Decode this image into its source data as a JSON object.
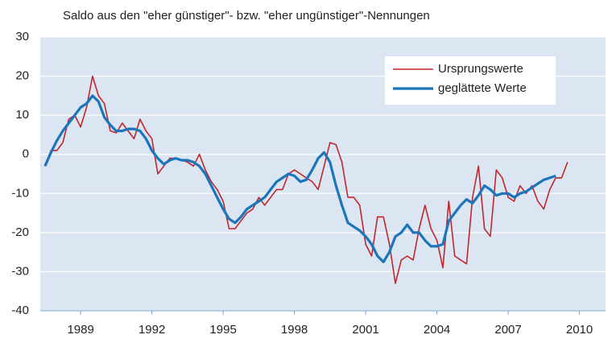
{
  "chart_data": {
    "type": "line",
    "title": "Saldo aus den \"eher günstiger\"- bzw. \"eher ungünstiger\"-Nennungen",
    "x": [
      1987.5,
      1987.75,
      1988,
      1988.25,
      1988.5,
      1988.75,
      1989,
      1989.25,
      1989.5,
      1989.75,
      1990,
      1990.25,
      1990.5,
      1990.75,
      1991,
      1991.25,
      1991.5,
      1991.75,
      1992,
      1992.25,
      1992.5,
      1992.75,
      1993,
      1993.25,
      1993.5,
      1993.75,
      1994,
      1994.25,
      1994.5,
      1994.75,
      1995,
      1995.25,
      1995.5,
      1995.75,
      1996,
      1996.25,
      1996.5,
      1996.75,
      1997,
      1997.25,
      1997.5,
      1997.75,
      1998,
      1998.25,
      1998.5,
      1998.75,
      1999,
      1999.25,
      1999.5,
      1999.75,
      2000,
      2000.25,
      2000.5,
      2000.75,
      2001,
      2001.25,
      2001.5,
      2001.75,
      2002,
      2002.25,
      2002.5,
      2002.75,
      2003,
      2003.25,
      2003.5,
      2003.75,
      2004,
      2004.25,
      2004.5,
      2004.75,
      2005,
      2005.25,
      2005.5,
      2005.75,
      2006,
      2006.25,
      2006.5,
      2006.75,
      2007,
      2007.25,
      2007.5,
      2007.75,
      2008,
      2008.25,
      2008.5,
      2008.75,
      2009,
      2009.25,
      2009.5
    ],
    "series": [
      {
        "name": "Ursprungswerte",
        "color": "#c0272d",
        "width": 1.6,
        "values": [
          -3,
          1,
          1,
          3,
          9,
          10,
          7,
          12,
          20,
          15,
          13,
          6,
          5.5,
          8,
          6,
          4,
          9,
          6,
          4,
          -5,
          -3,
          -1,
          -1,
          -1.5,
          -2,
          -3,
          0,
          -4,
          -7,
          -9,
          -12,
          -19,
          -19,
          -17,
          -15,
          -14,
          -11,
          -13,
          -11,
          -9,
          -9,
          -5,
          -4,
          -5,
          -6,
          -7,
          -9,
          -3,
          3,
          2.5,
          -2,
          -11,
          -11,
          -13,
          -23,
          -26,
          -16,
          -16,
          -23,
          -33,
          -27,
          -26,
          -27,
          -19,
          -13,
          -19,
          -22,
          -29,
          -12,
          -26,
          -27,
          -28,
          -11,
          -3,
          -19,
          -21,
          -4,
          -6,
          -11,
          -12,
          -8,
          -10,
          -8,
          -12,
          -14,
          -9,
          -6,
          -6,
          -2
        ]
      },
      {
        "name": "geglättete Werte",
        "color": "#1b75bb",
        "width": 3.2,
        "values": [
          -3,
          0.5,
          3.5,
          6,
          8,
          10,
          12,
          13,
          15,
          13.5,
          9.5,
          7.5,
          6,
          6,
          6.5,
          6.5,
          6,
          4,
          1,
          -1,
          -2.5,
          -1.5,
          -1,
          -1.5,
          -1.5,
          -2,
          -3,
          -5,
          -8,
          -11,
          -14,
          -16.5,
          -17.5,
          -16,
          -14,
          -13,
          -12,
          -11,
          -9,
          -7,
          -6,
          -5,
          -5.5,
          -7,
          -6.5,
          -4,
          -1,
          0.5,
          -2,
          -8,
          -13,
          -17.5,
          -18.5,
          -19.5,
          -21,
          -23,
          -26,
          -27.5,
          -25,
          -21,
          -20,
          -18,
          -20,
          -20,
          -22,
          -23.5,
          -23.5,
          -23,
          -17,
          -15,
          -13,
          -11.5,
          -12.5,
          -10.5,
          -8,
          -9,
          -10.5,
          -10,
          -10,
          -11,
          -10,
          -9.5,
          -8.5,
          -7.5,
          -6.5,
          -6,
          -5.5,
          null,
          null
        ]
      }
    ],
    "xlim": [
      1987.3,
      2011.1
    ],
    "xticks": [
      1989,
      1992,
      1995,
      1998,
      2001,
      2004,
      2007,
      2010
    ],
    "ylim": [
      -40,
      30
    ],
    "yticks": [
      -40,
      -30,
      -20,
      -10,
      0,
      10,
      20,
      30
    ],
    "grid": true,
    "legend": "upper right"
  }
}
